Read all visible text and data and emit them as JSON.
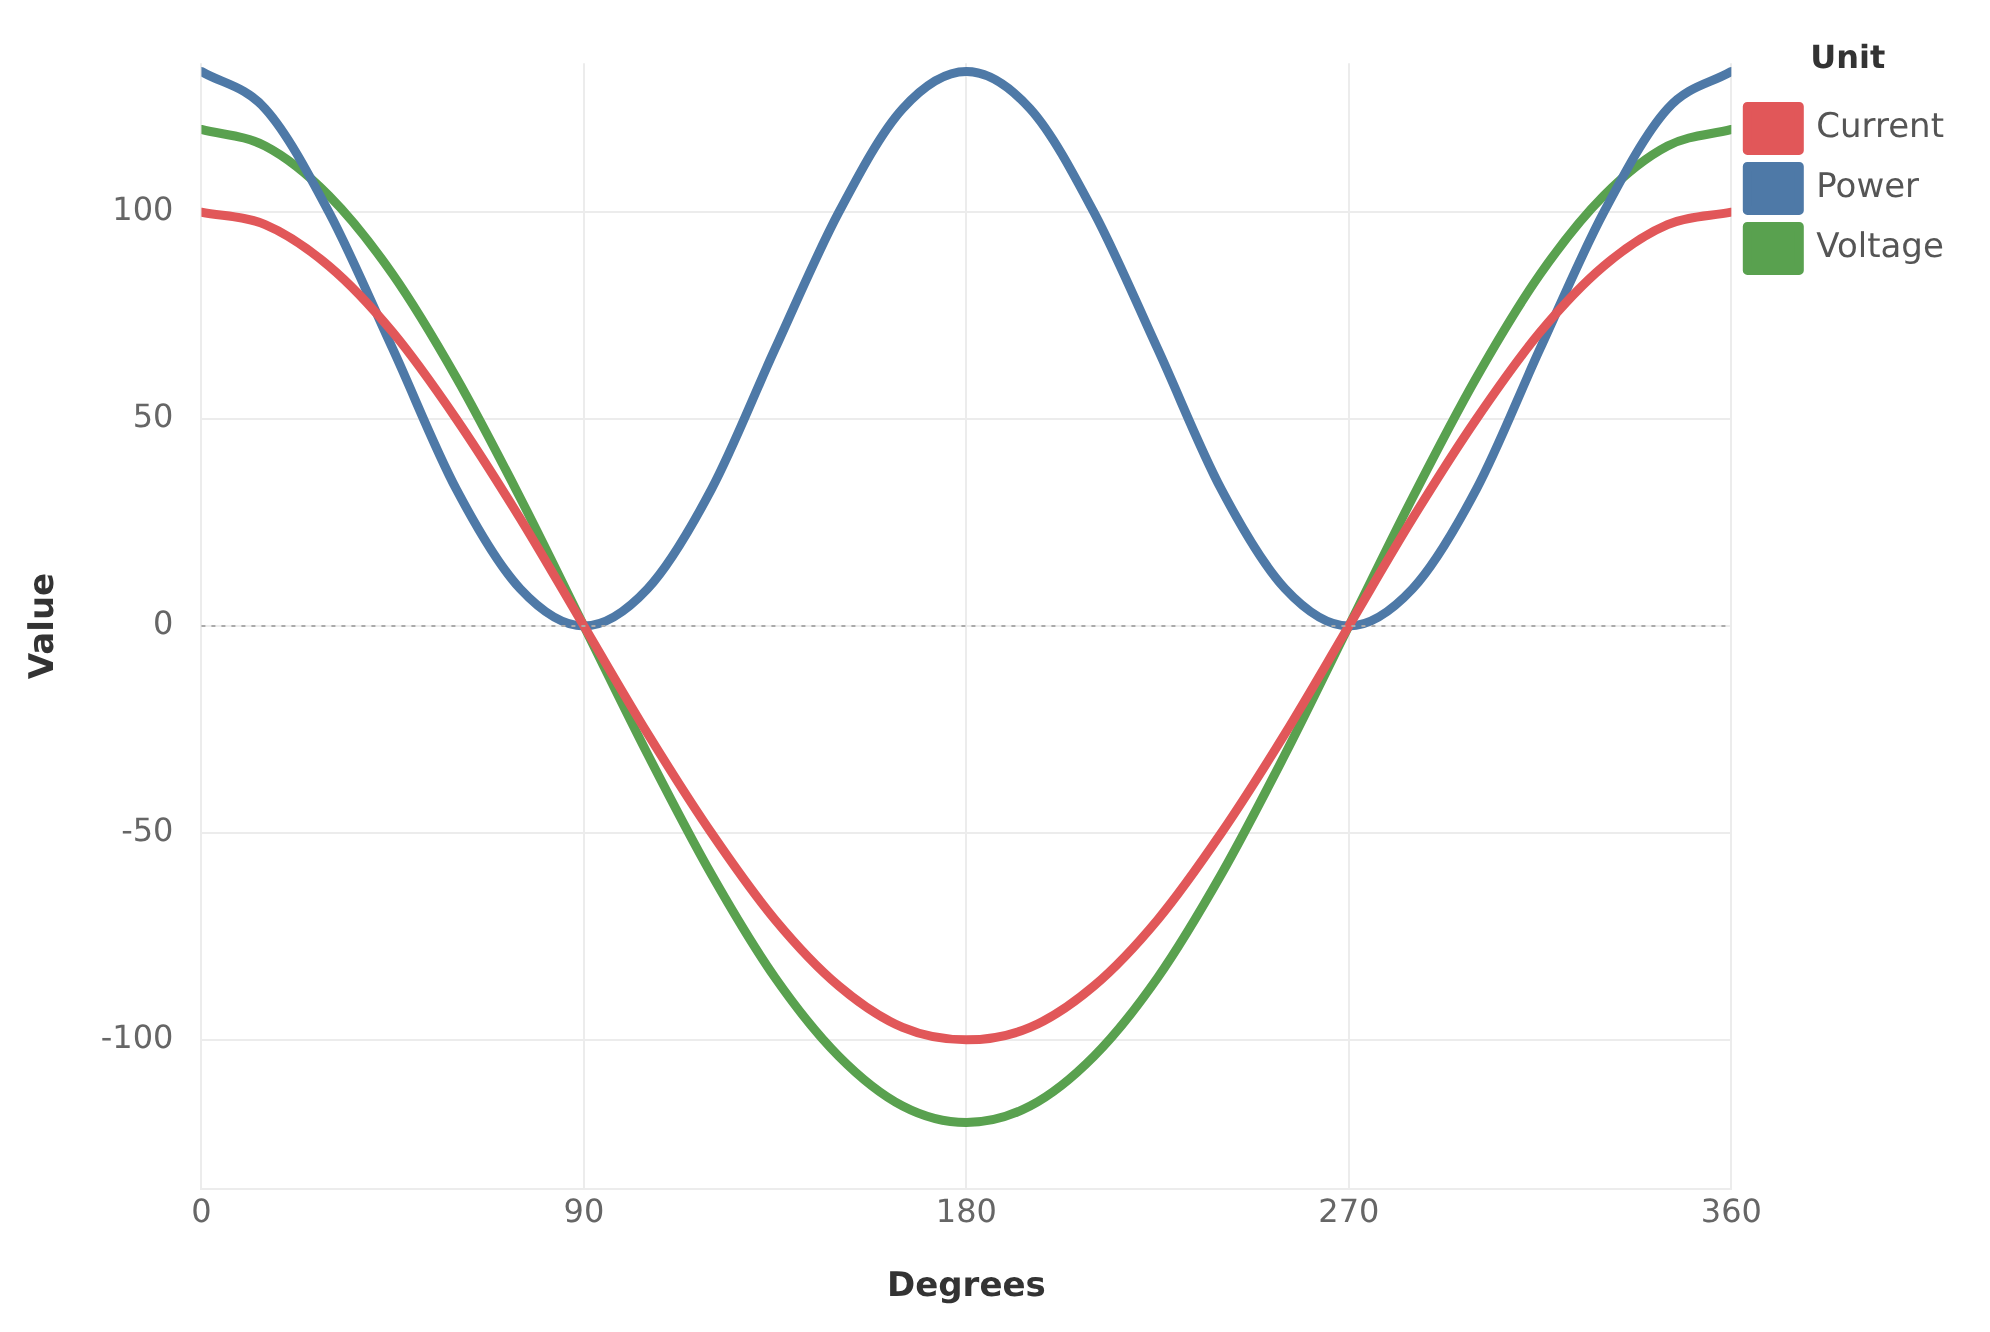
{
  "chart_data": {
    "type": "line",
    "xlabel": "Degrees",
    "ylabel": "Value",
    "legend_title": "Unit",
    "legend": "top right",
    "grid": true,
    "marker": "none",
    "x": [
      0,
      15,
      30,
      45,
      60,
      75,
      90,
      105,
      120,
      135,
      150,
      165,
      180,
      195,
      210,
      225,
      240,
      255,
      270,
      285,
      300,
      315,
      330,
      345,
      360
    ],
    "series": [
      {
        "name": "Current",
        "color": "#e15759",
        "values": [
          100,
          97,
          87,
          71,
          50,
          26,
          0,
          -26,
          -50,
          -71,
          -87,
          -97,
          -100,
          -97,
          -87,
          -71,
          -50,
          -26,
          0,
          26,
          50,
          71,
          87,
          97,
          100
        ]
      },
      {
        "name": "Power",
        "color": "#4e79a7",
        "values": [
          134,
          125,
          100,
          67,
          33,
          9,
          0,
          9,
          33,
          67,
          100,
          125,
          134,
          125,
          100,
          67,
          33,
          9,
          0,
          9,
          33,
          67,
          100,
          125,
          134
        ]
      },
      {
        "name": "Voltage",
        "color": "#59a14f",
        "values": [
          120,
          116,
          104,
          85,
          60,
          31,
          0,
          -31,
          -60,
          -85,
          -104,
          -116,
          -120,
          -116,
          -104,
          -85,
          -60,
          -31,
          0,
          31,
          60,
          85,
          104,
          116,
          120
        ]
      }
    ],
    "xlim": [
      0,
      360
    ],
    "xticks": [
      0,
      90,
      180,
      270,
      360
    ],
    "ylim": [
      -136,
      136
    ],
    "yticks": [
      -100,
      -50,
      0,
      50,
      100
    ],
    "ref_lines": [
      {
        "axis": "y",
        "value": 0,
        "color": "#aaaaaa",
        "line_style": "dotted"
      }
    ]
  }
}
